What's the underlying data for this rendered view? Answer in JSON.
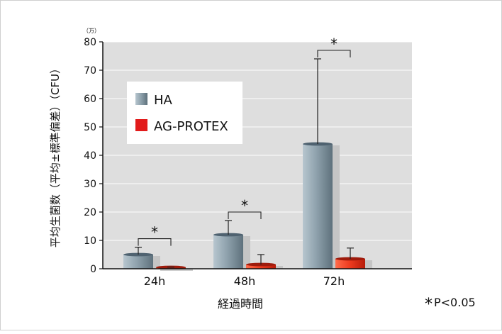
{
  "chart_data": {
    "type": "bar",
    "categories": [
      "24h",
      "48h",
      "72h"
    ],
    "series": [
      {
        "name": "HA",
        "color": "#7b8f9c",
        "values": [
          5,
          12,
          44
        ],
        "error_upper": [
          7.6,
          17,
          74
        ]
      },
      {
        "name": "AG-PROTEX",
        "color": "#e21b1b",
        "values": [
          0.3,
          1.5,
          3.5
        ],
        "error_upper": [
          0.6,
          5,
          7.3
        ]
      }
    ],
    "ylim": [
      0,
      80
    ],
    "yticks": [
      0,
      10,
      20,
      30,
      40,
      50,
      60,
      70,
      80
    ],
    "yunit": "（万）",
    "ylabel": "平均生菌数（平均±標準偏差）（CFU）",
    "xlabel": "経過時間",
    "legend_position": "upper-left",
    "significance": [
      {
        "category": "24h",
        "mark": "*"
      },
      {
        "category": "48h",
        "mark": "*"
      },
      {
        "category": "72h",
        "mark": "*"
      }
    ],
    "footnote_star": "*",
    "footnote": "P<0.05"
  }
}
